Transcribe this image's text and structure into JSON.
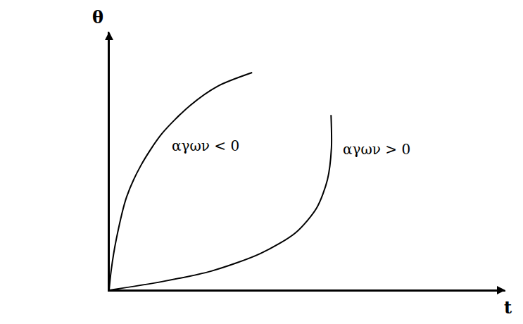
{
  "chart_data": {
    "type": "line",
    "xlabel": "t",
    "ylabel": "θ",
    "xlim": [
      0,
      10
    ],
    "ylim": [
      0,
      10
    ],
    "tick_labels": false,
    "grid": false,
    "series": [
      {
        "color": "#000000",
        "x": [
          0,
          0.05,
          0.18,
          0.44,
          0.8,
          1.33,
          2.04,
          2.75,
          3.61
        ],
        "values": [
          0,
          0.74,
          1.96,
          3.6,
          4.82,
          6.05,
          7.14,
          7.9,
          8.42
        ]
      },
      {
        "color": "#000000",
        "x": [
          0,
          1.33,
          2.58,
          3.82,
          4.71,
          5.24,
          5.51,
          5.61,
          5.6
        ],
        "values": [
          0,
          0.33,
          0.74,
          1.42,
          2.23,
          3.19,
          4.28,
          5.5,
          6.78
        ]
      }
    ],
    "annotations": [
      {
        "text": "αγων < 0",
        "x": 2.43,
        "y": 5.59
      },
      {
        "text": "αγων > 0",
        "x": 6.75,
        "y": 5.45
      }
    ]
  }
}
